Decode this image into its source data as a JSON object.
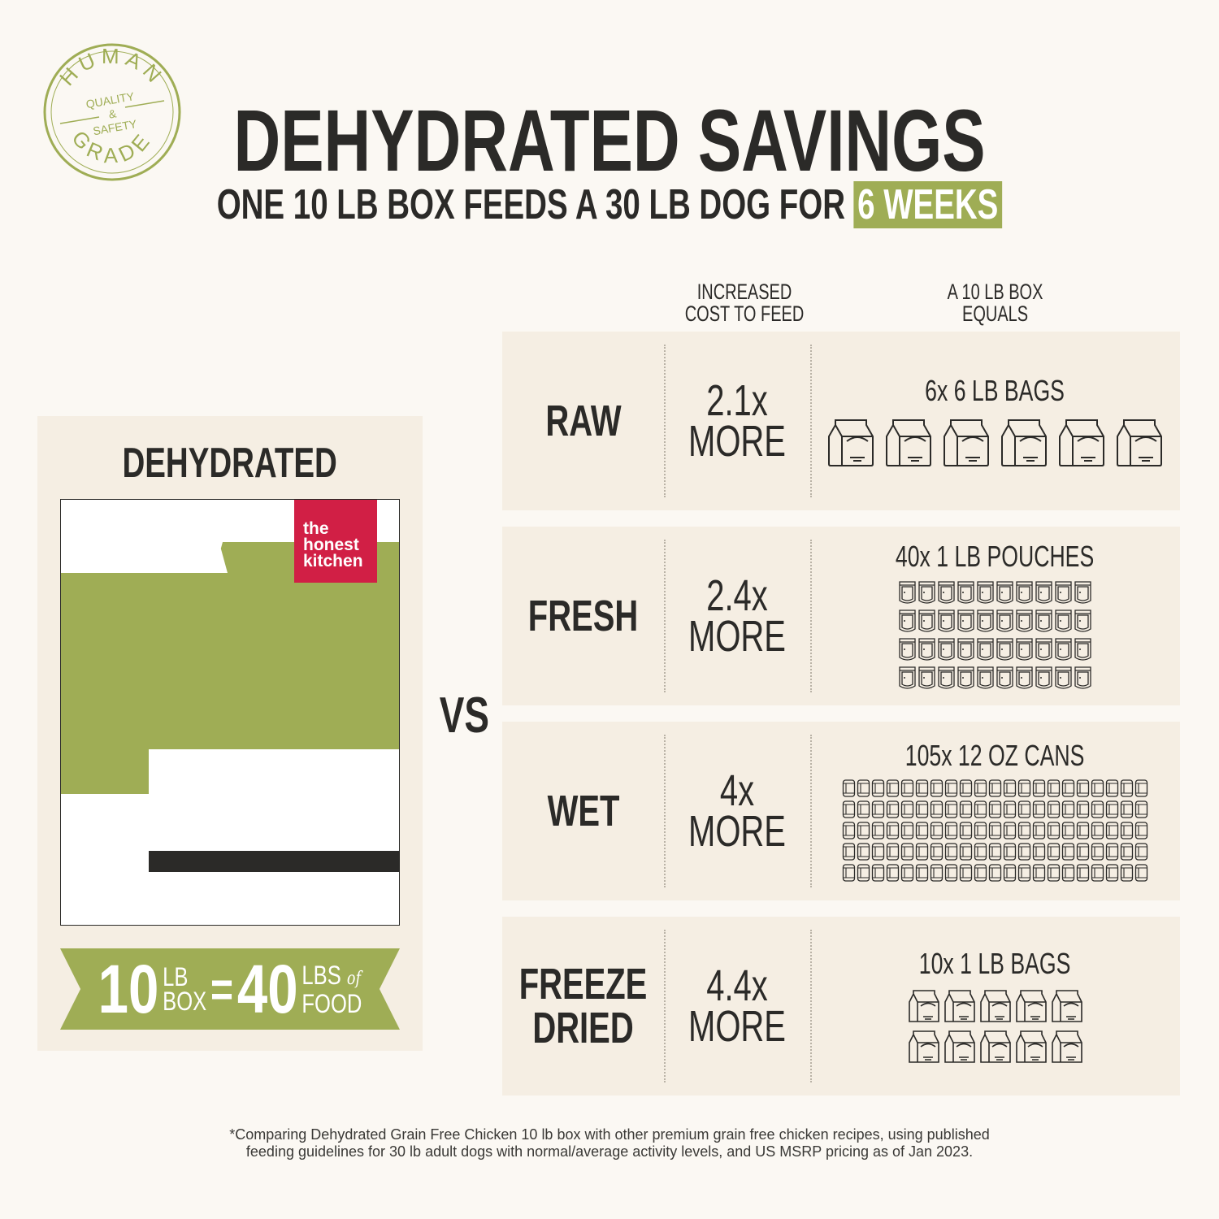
{
  "seal": {
    "text_top": "HUMAN",
    "text_mid": "QUALITY & SAFETY",
    "text_bottom": "GRADE",
    "color": "#9fad55"
  },
  "header": {
    "title": "DEHYDRATED SAVINGS",
    "subtitle": "ONE 10 LB BOX FEEDS A 30 LB DOG FOR",
    "highlight": "6 WEEKS"
  },
  "left": {
    "label": "DEHYDRATED",
    "brand_logo": "the honest kitchen",
    "banner": {
      "n1": "10",
      "u1a": "LB",
      "u1b": "BOX",
      "eq": "=",
      "n2": "40",
      "u2a": "LBS",
      "u2of": "of",
      "u2b": "FOOD"
    }
  },
  "vs": "VS",
  "columns": {
    "cost_line1": "INCREASED",
    "cost_line2": "COST TO FEED",
    "equals_line1": "A 10 LB BOX",
    "equals_line2": "EQUALS"
  },
  "rows": [
    {
      "label1": "RAW",
      "label2": "",
      "value": "2.1x",
      "more": "MORE",
      "equals": "6x 6 LB BAGS",
      "icon": "large-bag-icon",
      "count": 6,
      "cols": 6
    },
    {
      "label1": "FRESH",
      "label2": "",
      "value": "2.4x",
      "more": "MORE",
      "equals": "40x 1 LB POUCHES",
      "icon": "pouch-icon",
      "count": 40,
      "cols": 10
    },
    {
      "label1": "WET",
      "label2": "",
      "value": "4x",
      "more": "MORE",
      "equals": "105x 12 OZ CANS",
      "icon": "can-icon",
      "count": 105,
      "cols": 21
    },
    {
      "label1": "FREEZE",
      "label2": "DRIED",
      "value": "4.4x",
      "more": "MORE",
      "equals": "10x 1 LB BAGS",
      "icon": "small-bag-icon",
      "count": 10,
      "cols": 5
    }
  ],
  "footer": {
    "line1": "*Comparing Dehydrated Grain Free Chicken 10 lb box with other premium grain free chicken recipes, using published",
    "line2": "feeding guidelines for 30 lb adult dogs with normal/average activity levels, and US MSRP pricing as of Jan 2023."
  },
  "colors": {
    "background": "#fbf8f3",
    "panel": "#f5eee3",
    "green": "#9fad55",
    "dark": "#2b2a28",
    "brand_red": "#d11f45"
  }
}
